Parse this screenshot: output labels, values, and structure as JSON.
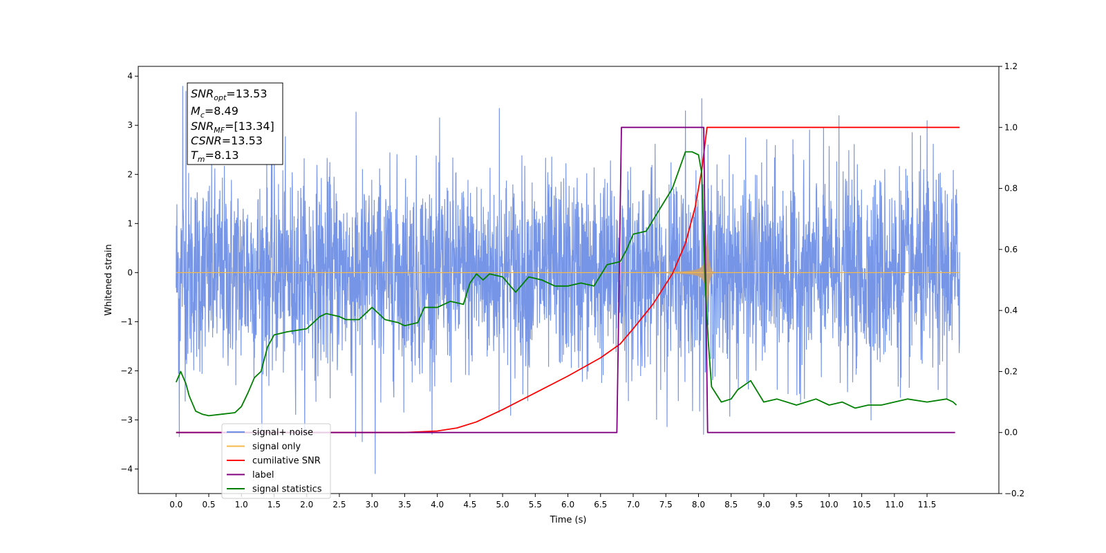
{
  "chart_data": {
    "type": "line",
    "xlabel": "Time (s)",
    "ylabel_left": "Whitened strain",
    "xlim": [
      -0.58,
      12.6
    ],
    "ylim_left": [
      -4.5,
      4.2
    ],
    "ylim_right": [
      -0.2,
      1.2
    ],
    "x_ticks": [
      "0.0",
      "0.5",
      "1.0",
      "1.5",
      "2.0",
      "2.5",
      "3.0",
      "3.5",
      "4.0",
      "4.5",
      "5.0",
      "5.5",
      "6.0",
      "6.5",
      "7.0",
      "7.5",
      "8.0",
      "8.5",
      "9.0",
      "9.5",
      "10.0",
      "10.5",
      "11.0",
      "11.5"
    ],
    "y_ticks_left": [
      "−4",
      "−3",
      "−2",
      "−1",
      "0",
      "1",
      "2",
      "3",
      "4"
    ],
    "y_ticks_right": [
      "−0.2",
      "0.0",
      "0.2",
      "0.4",
      "0.6",
      "0.8",
      "1.0",
      "1.2"
    ],
    "colors": {
      "noise": "#6f8fe6",
      "signal": "#f5b94a",
      "cumulative": "#ff0000",
      "label": "#800080",
      "stat": "#008000"
    },
    "annotation": {
      "snr_opt": {
        "base": "SNR",
        "sub": "opt",
        "value": "=13.53"
      },
      "mc": {
        "base": "M",
        "sub": "c",
        "value": "=8.49"
      },
      "snr_mf": {
        "base": "SNR",
        "sub": "MF",
        "value": "=[13.34]"
      },
      "csnr": {
        "base": "CSNR",
        "sub": "",
        "value": "=13.53"
      },
      "tm": {
        "base": "T",
        "sub": "m",
        "value": "=8.13"
      }
    },
    "legend": {
      "position": "lower-left",
      "entries": [
        {
          "label": "signal+ noise",
          "color": "#6f8fe6"
        },
        {
          "label": "signal only",
          "color": "#f5b94a"
        },
        {
          "label": "cumilative SNR",
          "color": "#ff0000"
        },
        {
          "label": "label",
          "color": "#800080"
        },
        {
          "label": "signal statistics",
          "color": "#008000"
        }
      ]
    },
    "series": [
      {
        "name": "signal+ noise",
        "axis": "left",
        "description_hint": "noise",
        "x_range": [
          0,
          12.0
        ],
        "noise_sigma": 1.0,
        "extremes": [
          [
            0.1,
            3.8
          ],
          [
            0.15,
            3.7
          ],
          [
            3.05,
            -4.1
          ],
          [
            2.85,
            -3.45
          ],
          [
            8.05,
            3.55
          ],
          [
            2.75,
            -3.35
          ],
          [
            7.8,
            3.3
          ],
          [
            4.95,
            3.35
          ],
          [
            10.15,
            3.2
          ],
          [
            11.5,
            3.1
          ],
          [
            0.05,
            -3.35
          ]
        ]
      },
      {
        "name": "signal only",
        "axis": "left",
        "chirp": {
          "t_start": 4.3,
          "t_merge": 8.13,
          "peak_amplitude": 1.1
        }
      },
      {
        "name": "cumilative SNR",
        "axis": "right",
        "x": [
          0,
          3.5,
          4.0,
          4.3,
          4.6,
          5.0,
          5.5,
          6.0,
          6.5,
          6.8,
          7.0,
          7.3,
          7.6,
          7.8,
          7.95,
          8.05,
          8.13,
          12.0
        ],
        "y": [
          0,
          0,
          0.005,
          0.015,
          0.035,
          0.075,
          0.13,
          0.185,
          0.245,
          0.29,
          0.34,
          0.42,
          0.52,
          0.62,
          0.74,
          0.86,
          1.0,
          1.0
        ]
      },
      {
        "name": "label",
        "axis": "right",
        "x": [
          0,
          6.75,
          6.82,
          8.08,
          8.14,
          11.93
        ],
        "y": [
          0,
          0,
          1,
          1,
          0,
          0
        ]
      },
      {
        "name": "signal statistics",
        "axis": "right",
        "x": [
          0,
          0.07,
          0.15,
          0.2,
          0.3,
          0.4,
          0.5,
          0.7,
          0.9,
          1.0,
          1.1,
          1.2,
          1.3,
          1.4,
          1.5,
          1.7,
          2.0,
          2.1,
          2.2,
          2.3,
          2.5,
          2.6,
          2.8,
          3.0,
          3.2,
          3.4,
          3.5,
          3.7,
          3.8,
          4.0,
          4.2,
          4.4,
          4.5,
          4.6,
          4.7,
          4.8,
          5.0,
          5.2,
          5.4,
          5.6,
          5.8,
          6.0,
          6.2,
          6.4,
          6.6,
          6.8,
          6.9,
          7.0,
          7.2,
          7.4,
          7.6,
          7.8,
          7.9,
          8.0,
          8.05,
          8.1,
          8.15,
          8.2,
          8.35,
          8.5,
          8.6,
          8.8,
          9.0,
          9.2,
          9.5,
          9.8,
          10.0,
          10.2,
          10.4,
          10.6,
          10.8,
          11.0,
          11.2,
          11.5,
          11.8,
          11.9,
          11.95
        ],
        "y": [
          0.165,
          0.2,
          0.16,
          0.12,
          0.07,
          0.06,
          0.055,
          0.06,
          0.065,
          0.085,
          0.13,
          0.18,
          0.2,
          0.28,
          0.32,
          0.33,
          0.34,
          0.36,
          0.38,
          0.39,
          0.38,
          0.37,
          0.37,
          0.41,
          0.37,
          0.36,
          0.35,
          0.36,
          0.41,
          0.41,
          0.43,
          0.42,
          0.49,
          0.52,
          0.5,
          0.52,
          0.51,
          0.46,
          0.51,
          0.5,
          0.48,
          0.48,
          0.49,
          0.48,
          0.55,
          0.56,
          0.6,
          0.65,
          0.66,
          0.73,
          0.8,
          0.92,
          0.92,
          0.91,
          0.85,
          0.5,
          0.3,
          0.15,
          0.1,
          0.11,
          0.14,
          0.17,
          0.1,
          0.11,
          0.09,
          0.11,
          0.09,
          0.1,
          0.08,
          0.09,
          0.09,
          0.1,
          0.11,
          0.1,
          0.11,
          0.1,
          0.09
        ]
      }
    ]
  }
}
